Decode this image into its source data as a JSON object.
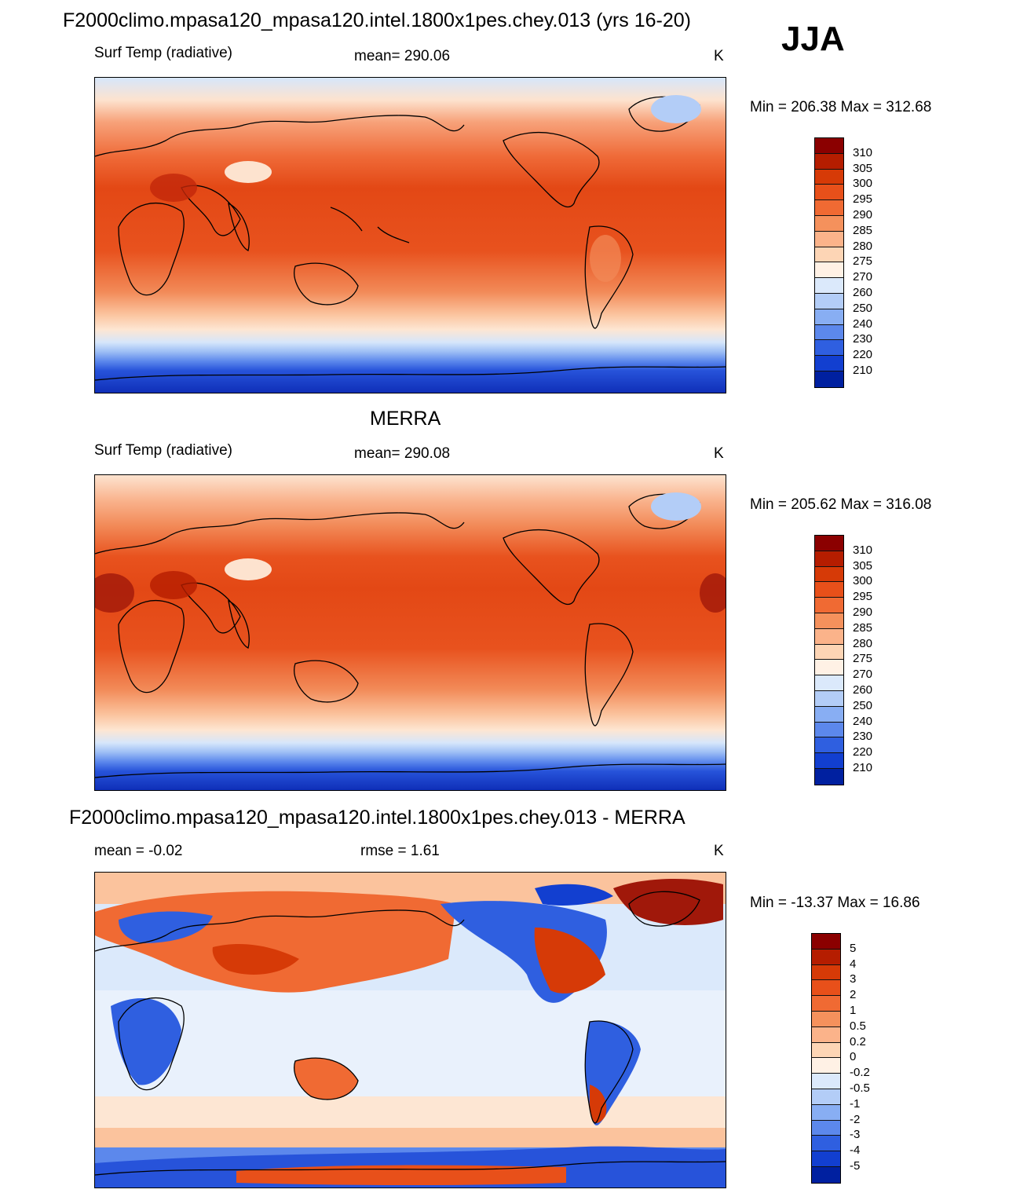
{
  "header": {
    "title": "F2000climo.mpasa120_mpasa120.intel.1800x1pes.chey.013 (yrs 16-20)",
    "season": "JJA"
  },
  "panels": [
    {
      "title": "",
      "left": "Surf Temp (radiative)",
      "center": "mean= 290.06",
      "units": "K",
      "minmax": "Min = 206.38 Max = 312.68"
    },
    {
      "title": "MERRA",
      "left": "Surf Temp (radiative)",
      "center": "mean= 290.08",
      "units": "K",
      "minmax": "Min = 205.62 Max = 316.08"
    },
    {
      "title": "F2000climo.mpasa120_mpasa120.intel.1800x1pes.chey.013 - MERRA",
      "left": "mean =  -0.02",
      "center": "rmse =   1.61",
      "units": "K",
      "minmax": "Min = -13.37 Max =  16.86"
    }
  ],
  "legends": {
    "temp": {
      "labels": [
        "310",
        "305",
        "300",
        "295",
        "290",
        "285",
        "280",
        "275",
        "270",
        "260",
        "250",
        "240",
        "230",
        "220",
        "210"
      ],
      "colors": [
        "#8b0000",
        "#b51d00",
        "#d63a07",
        "#e8501a",
        "#f06a33",
        "#f5915c",
        "#fbb38a",
        "#fdd5b5",
        "#fff1e5",
        "#dbe9fb",
        "#b3cdf7",
        "#88aef3",
        "#5c88ec",
        "#2f5fe0",
        "#123fd0",
        "#0020a0"
      ]
    },
    "diff": {
      "labels": [
        "5",
        "4",
        "3",
        "2",
        "1",
        "0.5",
        "0.2",
        "0",
        "-0.2",
        "-0.5",
        "-1",
        "-2",
        "-3",
        "-4",
        "-5"
      ],
      "colors": [
        "#8b0000",
        "#b51d00",
        "#d63a07",
        "#e8501a",
        "#f06a33",
        "#f5915c",
        "#fbb38a",
        "#fdd5b5",
        "#fff1e5",
        "#dbe9fb",
        "#b3cdf7",
        "#88aef3",
        "#5c88ec",
        "#2f5fe0",
        "#123fd0",
        "#0020a0"
      ]
    }
  }
}
